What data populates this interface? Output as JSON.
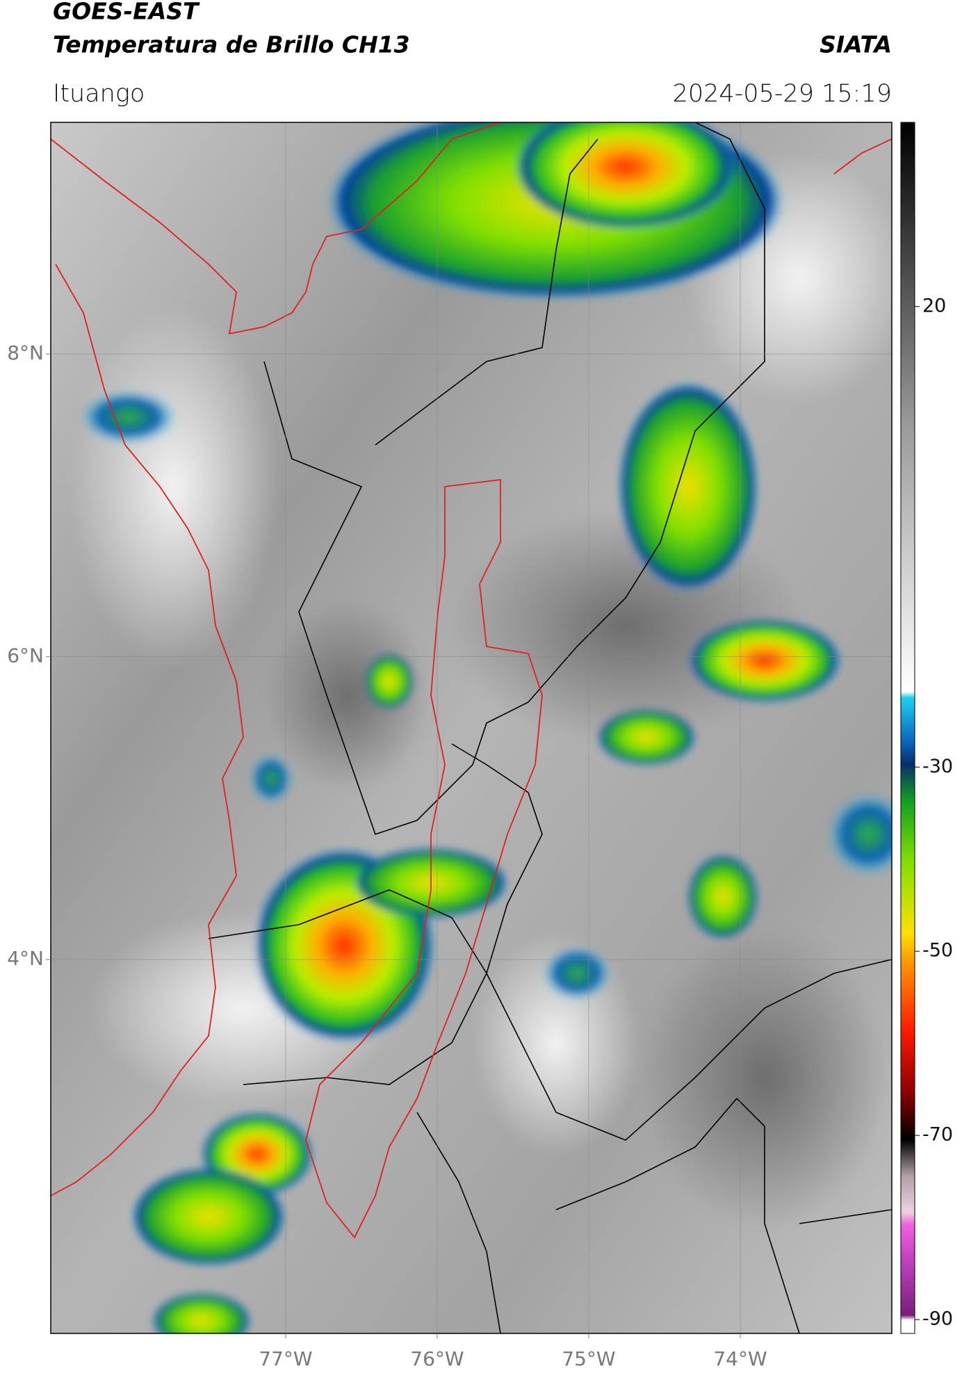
{
  "header": {
    "title_line1": "GOES-EAST",
    "title_line2": "Temperatura de Brillo CH13",
    "organization": "SIATA",
    "location": "Ituango",
    "datetime": "2024-05-29 15:19"
  },
  "map": {
    "xlim": [
      -78.55,
      -73.0
    ],
    "ylim": [
      1.53,
      9.53
    ],
    "xticks": [
      {
        "value": -77,
        "label": "77°W"
      },
      {
        "value": -76,
        "label": "76°W"
      },
      {
        "value": -75,
        "label": "75°W"
      },
      {
        "value": -74,
        "label": "74°W"
      }
    ],
    "yticks": [
      {
        "value": 4,
        "label": "4°N"
      },
      {
        "value": 6,
        "label": "6°N"
      },
      {
        "value": 8,
        "label": "8°N"
      }
    ]
  },
  "colorbar": {
    "lim": [
      -91.5,
      40
    ],
    "ticks": [
      -90,
      -70,
      -50,
      -30,
      20
    ]
  }
}
